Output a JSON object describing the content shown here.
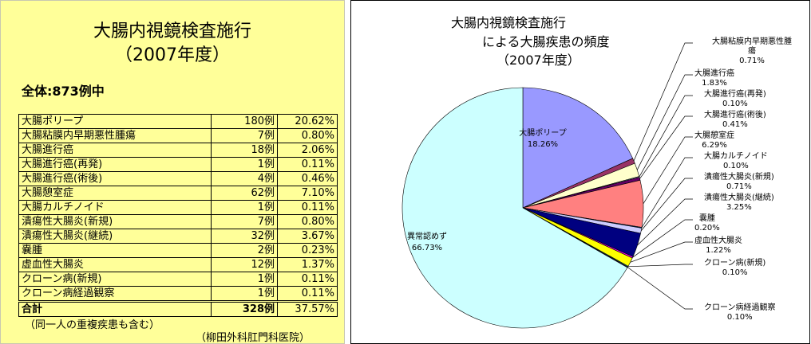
{
  "left_panel": {
    "title_line1": "大腸内視鏡検査施行",
    "title_line2": "（2007年度）",
    "total_label": "全体:873例中",
    "rows": [
      {
        "name": "大腸ポリープ",
        "count": "180例",
        "pct": "20.62%"
      },
      {
        "name": "大腸粘膜内早期悪性腫瘍",
        "count": "7例",
        "pct": "0.80%"
      },
      {
        "name": "大腸進行癌",
        "count": "18例",
        "pct": "2.06%"
      },
      {
        "name": "大腸進行癌(再発)",
        "count": "1例",
        "pct": "0.11%"
      },
      {
        "name": "大腸進行癌(術後)",
        "count": "4例",
        "pct": "0.46%"
      },
      {
        "name": "大腸憩室症",
        "count": "62例",
        "pct": "7.10%"
      },
      {
        "name": "大腸カルチノイド",
        "count": "1例",
        "pct": "0.11%"
      },
      {
        "name": "潰瘍性大腸炎(新規)",
        "count": "7例",
        "pct": "0.80%"
      },
      {
        "name": "潰瘍性大腸炎(継続)",
        "count": "32例",
        "pct": "3.67%"
      },
      {
        "name": "嚢腫",
        "count": "2例",
        "pct": "0.23%"
      },
      {
        "name": "虚血性大腸炎",
        "count": "12例",
        "pct": "1.37%"
      },
      {
        "name": "クローン病(新規)",
        "count": "1例",
        "pct": "0.11%"
      },
      {
        "name": "クローン病経過観察",
        "count": "1例",
        "pct": "0.11%"
      }
    ],
    "sum": {
      "name": "合計",
      "count": "328例",
      "pct": "37.57%"
    },
    "note": "（同一人の重複疾患も含む）",
    "source": "（柳田外科肛門科医院）"
  },
  "chart_data": {
    "type": "pie",
    "title_line1": "大腸内視鏡検査施行",
    "title_line2": "による大腸疾患の頻度",
    "title_line3": "（2007年度）",
    "start": "12 o'clock, clockwise",
    "slices": [
      {
        "label": "大腸ポリープ",
        "value": 18.26,
        "text": "18.26%",
        "color": "#9999ff"
      },
      {
        "label": "大腸粘膜内早期悪性腫瘍",
        "value": 0.71,
        "text": "0.71%",
        "color": "#993366"
      },
      {
        "label": "大腸進行癌",
        "value": 1.83,
        "text": "1.83%",
        "color": "#ffffcc"
      },
      {
        "label": "大腸進行癌(再発)",
        "value": 0.1,
        "text": "0.10%",
        "color": "#ccffff"
      },
      {
        "label": "大腸進行癌(術後)",
        "value": 0.41,
        "text": "0.41%",
        "color": "#660066"
      },
      {
        "label": "大腸憩室症",
        "value": 6.29,
        "text": "6.29%",
        "color": "#ff8080"
      },
      {
        "label": "大腸カルチノイド",
        "value": 0.1,
        "text": "0.10%",
        "color": "#0066cc"
      },
      {
        "label": "潰瘍性大腸炎(新規)",
        "value": 0.71,
        "text": "0.71%",
        "color": "#ccccff"
      },
      {
        "label": "潰瘍性大腸炎(継続)",
        "value": 3.25,
        "text": "3.25%",
        "color": "#000080"
      },
      {
        "label": "嚢腫",
        "value": 0.2,
        "text": "0.20%",
        "color": "#ff00ff"
      },
      {
        "label": "虚血性大腸炎",
        "value": 1.22,
        "text": "1.22%",
        "color": "#ffff00"
      },
      {
        "label": "クローン病(新規)",
        "value": 0.1,
        "text": "0.10%",
        "color": "#00ffff"
      },
      {
        "label": "クローン病経過観察",
        "value": 0.1,
        "text": "0.10%",
        "color": "#800080"
      },
      {
        "label": "異常認めず",
        "value": 66.73,
        "text": "66.73%",
        "color": "#ccffff"
      }
    ]
  }
}
